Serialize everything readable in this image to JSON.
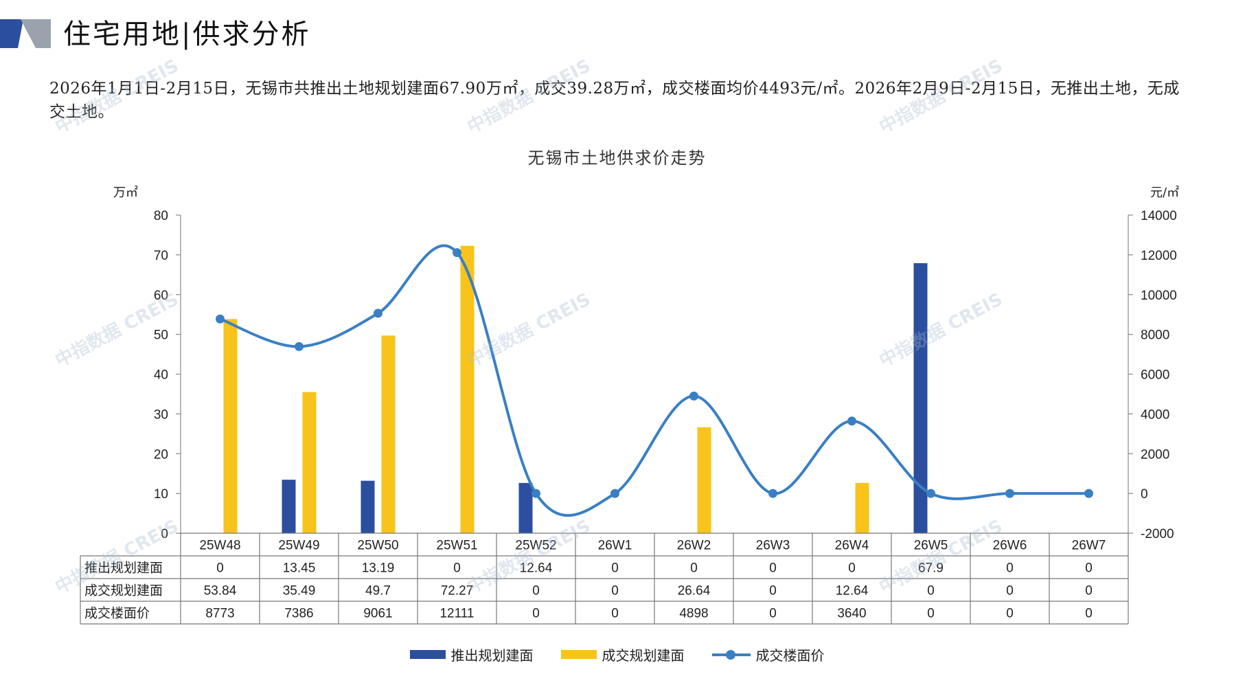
{
  "header": {
    "title": "住宅用地|供求分析"
  },
  "summary": "2026年1月1日-2月15日，无锡市共推出土地规划建面67.90万㎡，成交39.28万㎡，成交楼面均价4493元/㎡。2026年2月9日-2月15日，无推出土地，无成交土地。",
  "watermark_text": "中指数据 CREIS",
  "colors": {
    "supply_bar": "#2b4e9e",
    "deal_bar": "#f8c31a",
    "price_line": "#3a7fc4",
    "logo_dark": "#2b4e9e",
    "logo_gray": "#9aa3ad"
  },
  "chart_data": {
    "type": "bar",
    "title": "无锡市土地供求价走势",
    "left_unit": "万㎡",
    "right_unit": "元/㎡",
    "categories": [
      "25W48",
      "25W49",
      "25W50",
      "25W51",
      "25W52",
      "26W1",
      "26W2",
      "26W3",
      "26W4",
      "26W5",
      "26W6",
      "26W7"
    ],
    "ylim_left": [
      0,
      80
    ],
    "yticks_left": [
      0,
      10,
      20,
      30,
      40,
      50,
      60,
      70,
      80
    ],
    "ylim_right": [
      -2000,
      14000
    ],
    "yticks_right": [
      -2000,
      0,
      2000,
      4000,
      6000,
      8000,
      10000,
      12000,
      14000
    ],
    "series": [
      {
        "name": "推出规划建面",
        "kind": "bar",
        "axis": "left",
        "values": [
          0,
          13.45,
          13.19,
          0,
          12.64,
          0,
          0,
          0,
          0,
          67.9,
          0,
          0
        ],
        "labels": [
          "0",
          "13.45",
          "13.19",
          "0",
          "12.64",
          "0",
          "0",
          "0",
          "0",
          "67.9",
          "0",
          "0"
        ]
      },
      {
        "name": "成交规划建面",
        "kind": "bar",
        "axis": "left",
        "values": [
          53.84,
          35.49,
          49.7,
          72.27,
          0,
          0,
          26.64,
          0,
          12.64,
          0,
          0,
          0
        ],
        "labels": [
          "53.84",
          "35.49",
          "49.7",
          "72.27",
          "0",
          "0",
          "26.64",
          "0",
          "12.64",
          "0",
          "0",
          "0"
        ]
      },
      {
        "name": "成交楼面价",
        "kind": "line",
        "axis": "right",
        "values": [
          8773,
          7386,
          9061,
          12111,
          0,
          0,
          4898,
          0,
          3640,
          0,
          0,
          0
        ],
        "labels": [
          "8773",
          "7386",
          "9061",
          "12111",
          "0",
          "0",
          "4898",
          "0",
          "3640",
          "0",
          "0",
          "0"
        ]
      }
    ]
  }
}
